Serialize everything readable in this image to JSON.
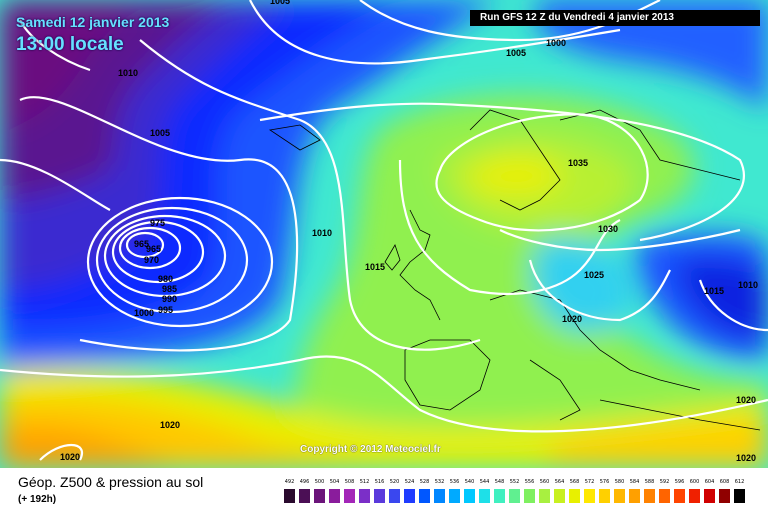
{
  "header": {
    "date_line": "Samedi 12 janvier 2013",
    "time_line": "13:00 locale",
    "run_info": "Run GFS 12 Z du Vendredi 4 janvier 2013"
  },
  "map": {
    "copyright": "Copyright © 2012 Meteociel.fr",
    "isobar_labels": [
      "1005",
      "1000",
      "1005",
      "1010",
      "1005",
      "975",
      "965",
      "965",
      "970",
      "980",
      "985",
      "990",
      "995",
      "1000",
      "1010",
      "1015",
      "1035",
      "1030",
      "1025",
      "1020",
      "1015",
      "1010",
      "1020",
      "1020",
      "1020",
      "1020"
    ]
  },
  "footer": {
    "product_title": "Géop. Z500 & pression au sol",
    "forecast_hour": "(+ 192h)"
  },
  "legend": {
    "values": [
      "492",
      "496",
      "500",
      "504",
      "508",
      "512",
      "516",
      "520",
      "524",
      "528",
      "532",
      "536",
      "540",
      "544",
      "548",
      "552",
      "556",
      "560",
      "564",
      "568",
      "572",
      "576",
      "580",
      "584",
      "588",
      "592",
      "596",
      "600",
      "604",
      "608",
      "612"
    ],
    "colors": [
      "#2a0a2e",
      "#4b0f55",
      "#6b147a",
      "#8a1c9c",
      "#a326b8",
      "#7b2fc8",
      "#5a3adc",
      "#3a47ef",
      "#1f3cff",
      "#0057ff",
      "#0087ff",
      "#00aaff",
      "#00c8ff",
      "#1ee0e8",
      "#40f0c0",
      "#60f090",
      "#7ff060",
      "#a8f040",
      "#c8f020",
      "#e8f000",
      "#ffe800",
      "#ffd000",
      "#ffb800",
      "#ffa000",
      "#ff8200",
      "#ff6400",
      "#ff4400",
      "#f02000",
      "#d00000",
      "#900000",
      "#000000"
    ]
  }
}
